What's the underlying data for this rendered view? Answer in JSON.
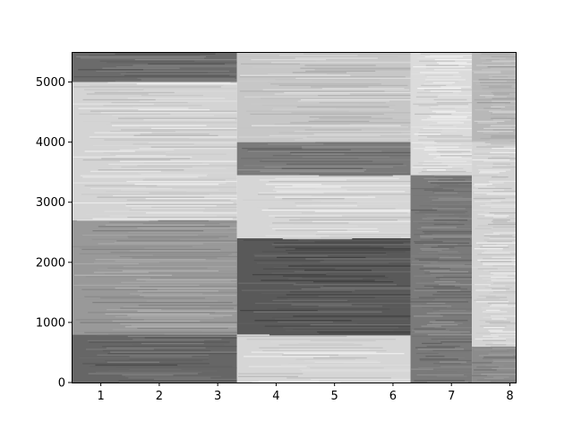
{
  "chart_data": {
    "type": "heatmap",
    "title": "",
    "xlabel": "",
    "ylabel": "",
    "colormap": "gray",
    "xlim": [
      0.5,
      8.1
    ],
    "ylim": [
      0,
      5500
    ],
    "x_ticks": [
      "1",
      "2",
      "3",
      "4",
      "5",
      "6",
      "7",
      "8"
    ],
    "y_ticks": [
      "0",
      "1000",
      "2000",
      "3000",
      "4000",
      "5000"
    ],
    "segments": [
      {
        "x_start": 0.5,
        "x_end": 3.33,
        "bands": [
          {
            "y0": 0,
            "y1": 800,
            "level": 0.4
          },
          {
            "y0": 800,
            "y1": 2700,
            "level": 0.6
          },
          {
            "y0": 2700,
            "y1": 5000,
            "level": 0.83
          },
          {
            "y0": 5000,
            "y1": 5500,
            "level": 0.42
          }
        ]
      },
      {
        "x_start": 3.33,
        "x_end": 6.3,
        "bands": [
          {
            "y0": 0,
            "y1": 800,
            "level": 0.84
          },
          {
            "y0": 800,
            "y1": 2400,
            "level": 0.35
          },
          {
            "y0": 2400,
            "y1": 3450,
            "level": 0.84
          },
          {
            "y0": 3450,
            "y1": 4000,
            "level": 0.48
          },
          {
            "y0": 4000,
            "y1": 5500,
            "level": 0.78
          }
        ]
      },
      {
        "x_start": 6.3,
        "x_end": 7.35,
        "bands": [
          {
            "y0": 0,
            "y1": 3450,
            "level": 0.48
          },
          {
            "y0": 3450,
            "y1": 5500,
            "level": 0.86
          }
        ]
      },
      {
        "x_start": 7.35,
        "x_end": 8.1,
        "bands": [
          {
            "y0": 0,
            "y1": 600,
            "level": 0.55
          },
          {
            "y0": 600,
            "y1": 4000,
            "level": 0.83
          },
          {
            "y0": 4000,
            "y1": 5500,
            "level": 0.72
          }
        ]
      }
    ]
  }
}
